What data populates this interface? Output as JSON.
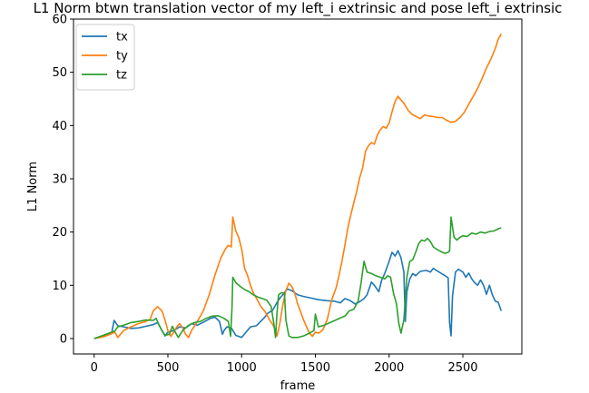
{
  "chart_data": {
    "type": "line",
    "title": "L1 Norm btwn translation vector of my left_i extrinsic and pose left_i extrinsic",
    "xlabel": "frame",
    "ylabel": "L1 Norm",
    "xlim": [
      -140,
      2900
    ],
    "ylim": [
      -2.9,
      60
    ],
    "xticks": [
      0,
      500,
      1000,
      1500,
      2000,
      2500
    ],
    "yticks": [
      0,
      10,
      20,
      30,
      40,
      50,
      60
    ],
    "grid": false,
    "legend_position": "top-left",
    "series": [
      {
        "name": "tx",
        "color": "#1f77b4",
        "points": [
          [
            0,
            0
          ],
          [
            60,
            0.5
          ],
          [
            120,
            1.2
          ],
          [
            135,
            3.4
          ],
          [
            160,
            2.4
          ],
          [
            200,
            2.2
          ],
          [
            250,
            1.9
          ],
          [
            300,
            2.0
          ],
          [
            350,
            2.3
          ],
          [
            400,
            2.6
          ],
          [
            430,
            3.0
          ],
          [
            460,
            1.5
          ],
          [
            480,
            0.5
          ],
          [
            500,
            1.2
          ],
          [
            540,
            1.5
          ],
          [
            580,
            2.2
          ],
          [
            620,
            2.0
          ],
          [
            660,
            2.8
          ],
          [
            700,
            2.5
          ],
          [
            750,
            3.2
          ],
          [
            790,
            3.8
          ],
          [
            820,
            4.0
          ],
          [
            850,
            3.2
          ],
          [
            870,
            0.8
          ],
          [
            880,
            1.5
          ],
          [
            900,
            2.2
          ],
          [
            930,
            2.0
          ],
          [
            960,
            0.6
          ],
          [
            1000,
            0.2
          ],
          [
            1030,
            1.2
          ],
          [
            1060,
            2.2
          ],
          [
            1100,
            2.4
          ],
          [
            1150,
            3.8
          ],
          [
            1180,
            4.8
          ],
          [
            1210,
            5.3
          ],
          [
            1240,
            6.8
          ],
          [
            1260,
            7.6
          ],
          [
            1290,
            8.6
          ],
          [
            1310,
            9.3
          ],
          [
            1340,
            9.0
          ],
          [
            1380,
            8.2
          ],
          [
            1420,
            7.9
          ],
          [
            1470,
            7.6
          ],
          [
            1520,
            7.3
          ],
          [
            1580,
            7.1
          ],
          [
            1630,
            7.0
          ],
          [
            1670,
            6.7
          ],
          [
            1700,
            7.5
          ],
          [
            1730,
            7.2
          ],
          [
            1770,
            6.5
          ],
          [
            1800,
            6.9
          ],
          [
            1830,
            7.5
          ],
          [
            1850,
            8.2
          ],
          [
            1880,
            10.6
          ],
          [
            1900,
            10.0
          ],
          [
            1930,
            8.8
          ],
          [
            1950,
            11.0
          ],
          [
            1970,
            12.2
          ],
          [
            2000,
            14.5
          ],
          [
            2020,
            16.2
          ],
          [
            2040,
            15.5
          ],
          [
            2060,
            16.5
          ],
          [
            2080,
            15.2
          ],
          [
            2100,
            12.5
          ],
          [
            2110,
            3.2
          ],
          [
            2120,
            8.8
          ],
          [
            2140,
            11.2
          ],
          [
            2160,
            12.2
          ],
          [
            2180,
            11.8
          ],
          [
            2210,
            12.6
          ],
          [
            2250,
            12.8
          ],
          [
            2280,
            12.5
          ],
          [
            2300,
            13.2
          ],
          [
            2320,
            12.8
          ],
          [
            2350,
            12.3
          ],
          [
            2380,
            11.8
          ],
          [
            2400,
            11.4
          ],
          [
            2410,
            3.0
          ],
          [
            2420,
            0.5
          ],
          [
            2430,
            8.0
          ],
          [
            2450,
            12.5
          ],
          [
            2470,
            13.0
          ],
          [
            2500,
            12.5
          ],
          [
            2520,
            11.5
          ],
          [
            2540,
            12.3
          ],
          [
            2560,
            11.2
          ],
          [
            2580,
            10.5
          ],
          [
            2600,
            10.0
          ],
          [
            2620,
            11.0
          ],
          [
            2640,
            10.0
          ],
          [
            2660,
            8.3
          ],
          [
            2680,
            10.0
          ],
          [
            2700,
            8.2
          ],
          [
            2720,
            7.0
          ],
          [
            2740,
            6.8
          ],
          [
            2760,
            5.2
          ]
        ]
      },
      {
        "name": "ty",
        "color": "#ff7f0e",
        "points": [
          [
            0,
            0
          ],
          [
            60,
            0.3
          ],
          [
            110,
            0.8
          ],
          [
            140,
            1.2
          ],
          [
            160,
            0.2
          ],
          [
            200,
            1.5
          ],
          [
            250,
            2.2
          ],
          [
            300,
            2.8
          ],
          [
            350,
            3.2
          ],
          [
            380,
            3.6
          ],
          [
            400,
            5.2
          ],
          [
            430,
            6.0
          ],
          [
            460,
            5.2
          ],
          [
            480,
            3.5
          ],
          [
            500,
            1.5
          ],
          [
            520,
            0.4
          ],
          [
            540,
            1.2
          ],
          [
            560,
            2.2
          ],
          [
            580,
            2.8
          ],
          [
            600,
            2.0
          ],
          [
            620,
            0.8
          ],
          [
            640,
            0.2
          ],
          [
            660,
            1.5
          ],
          [
            700,
            3.2
          ],
          [
            740,
            5.2
          ],
          [
            780,
            8.2
          ],
          [
            820,
            12.0
          ],
          [
            860,
            15.2
          ],
          [
            890,
            16.8
          ],
          [
            910,
            17.5
          ],
          [
            930,
            17.2
          ],
          [
            940,
            22.8
          ],
          [
            960,
            20.2
          ],
          [
            980,
            19.0
          ],
          [
            1000,
            16.8
          ],
          [
            1020,
            13.2
          ],
          [
            1040,
            11.8
          ],
          [
            1060,
            10.0
          ],
          [
            1080,
            8.5
          ],
          [
            1100,
            7.6
          ],
          [
            1130,
            6.0
          ],
          [
            1160,
            5.0
          ],
          [
            1190,
            3.5
          ],
          [
            1220,
            2.2
          ],
          [
            1240,
            0.5
          ],
          [
            1260,
            3.0
          ],
          [
            1280,
            6.5
          ],
          [
            1300,
            9.0
          ],
          [
            1320,
            10.4
          ],
          [
            1340,
            9.8
          ],
          [
            1360,
            8.5
          ],
          [
            1380,
            6.5
          ],
          [
            1400,
            5.0
          ],
          [
            1420,
            3.5
          ],
          [
            1440,
            2.2
          ],
          [
            1460,
            1.0
          ],
          [
            1480,
            0.4
          ],
          [
            1500,
            1.2
          ],
          [
            1520,
            1.0
          ],
          [
            1550,
            1.6
          ],
          [
            1580,
            3.5
          ],
          [
            1610,
            7.2
          ],
          [
            1640,
            9.5
          ],
          [
            1660,
            11.8
          ],
          [
            1680,
            14.5
          ],
          [
            1700,
            17.5
          ],
          [
            1720,
            20.8
          ],
          [
            1740,
            23.2
          ],
          [
            1760,
            25.5
          ],
          [
            1780,
            27.6
          ],
          [
            1800,
            30.2
          ],
          [
            1820,
            32.0
          ],
          [
            1840,
            35.2
          ],
          [
            1860,
            36.2
          ],
          [
            1880,
            36.8
          ],
          [
            1900,
            36.5
          ],
          [
            1920,
            38.2
          ],
          [
            1940,
            39.2
          ],
          [
            1960,
            39.8
          ],
          [
            1980,
            39.5
          ],
          [
            2000,
            40.5
          ],
          [
            2020,
            42.6
          ],
          [
            2040,
            44.5
          ],
          [
            2060,
            45.5
          ],
          [
            2080,
            44.8
          ],
          [
            2100,
            44.2
          ],
          [
            2130,
            42.8
          ],
          [
            2160,
            42.0
          ],
          [
            2190,
            41.6
          ],
          [
            2210,
            41.3
          ],
          [
            2240,
            42.0
          ],
          [
            2270,
            41.8
          ],
          [
            2300,
            41.7
          ],
          [
            2330,
            41.5
          ],
          [
            2360,
            41.5
          ],
          [
            2390,
            41.0
          ],
          [
            2420,
            40.6
          ],
          [
            2450,
            40.8
          ],
          [
            2480,
            41.5
          ],
          [
            2510,
            42.5
          ],
          [
            2540,
            44.0
          ],
          [
            2570,
            45.5
          ],
          [
            2600,
            47.0
          ],
          [
            2630,
            48.8
          ],
          [
            2660,
            50.8
          ],
          [
            2690,
            52.5
          ],
          [
            2720,
            54.5
          ],
          [
            2740,
            56.2
          ],
          [
            2760,
            57.2
          ]
        ]
      },
      {
        "name": "tz",
        "color": "#2ca02c",
        "points": [
          [
            0,
            0
          ],
          [
            60,
            0.6
          ],
          [
            110,
            1.1
          ],
          [
            140,
            1.4
          ],
          [
            160,
            2.2
          ],
          [
            200,
            2.5
          ],
          [
            250,
            3.0
          ],
          [
            300,
            3.2
          ],
          [
            350,
            3.5
          ],
          [
            400,
            3.4
          ],
          [
            420,
            3.8
          ],
          [
            440,
            2.5
          ],
          [
            460,
            1.5
          ],
          [
            480,
            0.6
          ],
          [
            510,
            0.8
          ],
          [
            530,
            2.3
          ],
          [
            550,
            1.2
          ],
          [
            570,
            0.2
          ],
          [
            600,
            1.5
          ],
          [
            640,
            2.5
          ],
          [
            680,
            3.0
          ],
          [
            720,
            3.2
          ],
          [
            760,
            3.8
          ],
          [
            800,
            4.2
          ],
          [
            840,
            4.3
          ],
          [
            880,
            3.8
          ],
          [
            910,
            3.2
          ],
          [
            925,
            0.4
          ],
          [
            935,
            6.0
          ],
          [
            940,
            11.5
          ],
          [
            960,
            10.5
          ],
          [
            990,
            9.8
          ],
          [
            1020,
            9.2
          ],
          [
            1050,
            8.8
          ],
          [
            1080,
            8.2
          ],
          [
            1110,
            7.8
          ],
          [
            1140,
            7.5
          ],
          [
            1170,
            7.2
          ],
          [
            1200,
            6.0
          ],
          [
            1220,
            2.5
          ],
          [
            1230,
            0.2
          ],
          [
            1240,
            5.0
          ],
          [
            1250,
            8.2
          ],
          [
            1270,
            8.6
          ],
          [
            1290,
            8.5
          ],
          [
            1300,
            3.5
          ],
          [
            1320,
            0.5
          ],
          [
            1340,
            0.2
          ],
          [
            1380,
            0.2
          ],
          [
            1420,
            0.5
          ],
          [
            1460,
            1.0
          ],
          [
            1490,
            1.5
          ],
          [
            1500,
            4.6
          ],
          [
            1520,
            2.2
          ],
          [
            1560,
            2.5
          ],
          [
            1600,
            3.0
          ],
          [
            1640,
            3.5
          ],
          [
            1680,
            4.0
          ],
          [
            1700,
            4.2
          ],
          [
            1730,
            5.2
          ],
          [
            1760,
            5.5
          ],
          [
            1790,
            7.0
          ],
          [
            1810,
            10.5
          ],
          [
            1830,
            14.5
          ],
          [
            1850,
            12.5
          ],
          [
            1880,
            12.2
          ],
          [
            1910,
            11.8
          ],
          [
            1940,
            11.5
          ],
          [
            1970,
            11.2
          ],
          [
            1990,
            11.8
          ],
          [
            2010,
            11.5
          ],
          [
            2030,
            8.5
          ],
          [
            2050,
            6.5
          ],
          [
            2065,
            3.0
          ],
          [
            2080,
            1.0
          ],
          [
            2100,
            3.5
          ],
          [
            2120,
            11.5
          ],
          [
            2130,
            13.0
          ],
          [
            2140,
            14.5
          ],
          [
            2160,
            14.8
          ],
          [
            2180,
            16.2
          ],
          [
            2200,
            17.8
          ],
          [
            2220,
            18.5
          ],
          [
            2240,
            18.3
          ],
          [
            2260,
            18.8
          ],
          [
            2280,
            18.2
          ],
          [
            2300,
            17.2
          ],
          [
            2320,
            16.8
          ],
          [
            2340,
            16.5
          ],
          [
            2360,
            16.2
          ],
          [
            2380,
            16.0
          ],
          [
            2400,
            16.2
          ],
          [
            2410,
            16.5
          ],
          [
            2420,
            22.8
          ],
          [
            2440,
            19.0
          ],
          [
            2460,
            18.5
          ],
          [
            2480,
            19.0
          ],
          [
            2500,
            19.3
          ],
          [
            2530,
            19.2
          ],
          [
            2560,
            19.8
          ],
          [
            2590,
            19.6
          ],
          [
            2620,
            20.0
          ],
          [
            2650,
            19.8
          ],
          [
            2680,
            20.1
          ],
          [
            2710,
            20.2
          ],
          [
            2740,
            20.6
          ],
          [
            2760,
            20.8
          ]
        ]
      }
    ]
  }
}
